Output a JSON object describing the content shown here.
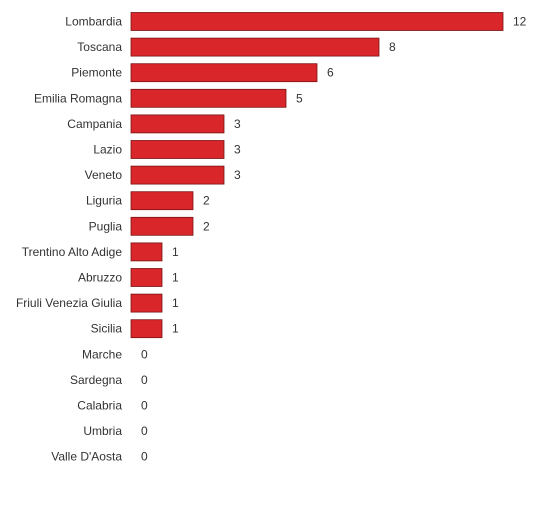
{
  "chart_data": {
    "type": "bar",
    "orientation": "horizontal",
    "categories": [
      "Lombardia",
      "Toscana",
      "Piemonte",
      "Emilia Romagna",
      "Campania",
      "Lazio",
      "Veneto",
      "Liguria",
      "Puglia",
      "Trentino Alto Adige",
      "Abruzzo",
      "Friuli Venezia Giulia",
      "Sicilia",
      "Marche",
      "Sardegna",
      "Calabria",
      "Umbria",
      "Valle D'Aosta"
    ],
    "values": [
      12,
      8,
      6,
      5,
      3,
      3,
      3,
      2,
      2,
      1,
      1,
      1,
      1,
      0,
      0,
      0,
      0,
      0
    ],
    "title": "",
    "xlabel": "",
    "ylabel": "",
    "xlim": [
      0,
      12
    ],
    "grid": false,
    "legend": "none",
    "bar_color": "#d9262a",
    "bar_border_color": "#7a1414",
    "text_color": "#333333"
  }
}
